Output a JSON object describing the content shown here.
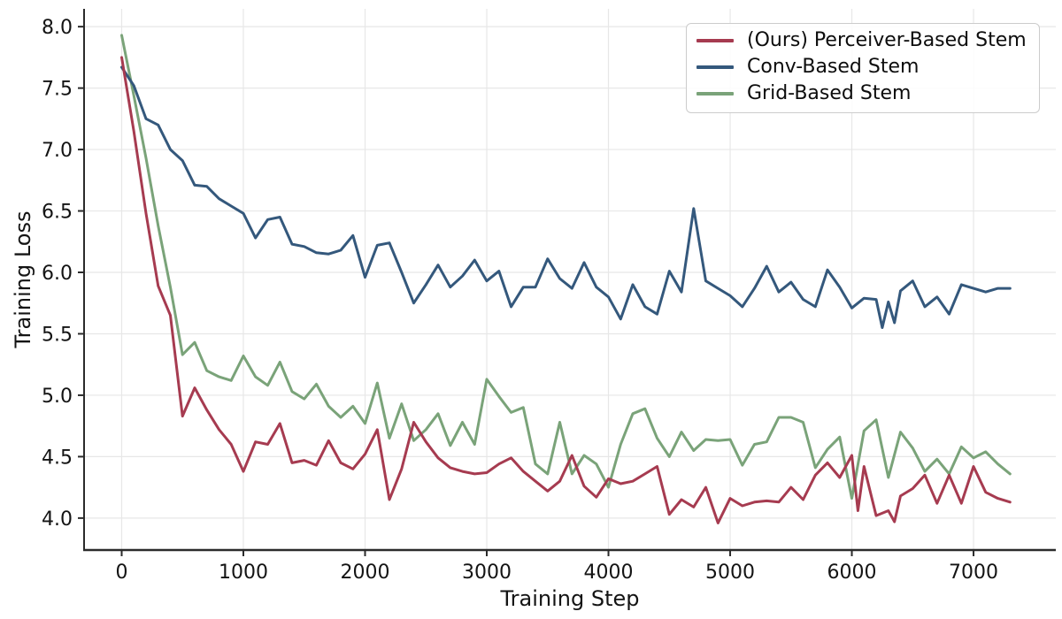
{
  "chart_data": {
    "type": "line",
    "title": "",
    "xlabel": "Training Step",
    "ylabel": "Training Loss",
    "xlim": [
      -309,
      7676
    ],
    "ylim": [
      3.74,
      8.145
    ],
    "grid": true,
    "legend_position": "upper right",
    "x_ticks": [
      {
        "value": 0,
        "label": "0"
      },
      {
        "value": 1000,
        "label": "1000"
      },
      {
        "value": 2000,
        "label": "2000"
      },
      {
        "value": 3000,
        "label": "3000"
      },
      {
        "value": 4000,
        "label": "4000"
      },
      {
        "value": 5000,
        "label": "5000"
      },
      {
        "value": 6000,
        "label": "6000"
      },
      {
        "value": 7000,
        "label": "7000"
      }
    ],
    "y_ticks": [
      {
        "value": 4.0,
        "label": "4.0"
      },
      {
        "value": 4.5,
        "label": "4.5"
      },
      {
        "value": 5.0,
        "label": "5.0"
      },
      {
        "value": 5.5,
        "label": "5.5"
      },
      {
        "value": 6.0,
        "label": "6.0"
      },
      {
        "value": 6.5,
        "label": "6.5"
      },
      {
        "value": 7.0,
        "label": "7.0"
      },
      {
        "value": 7.5,
        "label": "7.5"
      },
      {
        "value": 8.0,
        "label": "8.0"
      }
    ],
    "style": {
      "background": "#ffffff",
      "grid_color": "#e7e7e7",
      "spine_color": "#2b2b2b",
      "tick_label_color": "#141414",
      "legend_border_color": "#cccccc",
      "line_width": 3
    },
    "series": [
      {
        "name": "(Ours) Perceiver-Based Stem",
        "color": "#a63b50",
        "x": [
          0,
          100,
          200,
          300,
          400,
          500,
          600,
          700,
          800,
          900,
          1000,
          1100,
          1200,
          1300,
          1400,
          1500,
          1600,
          1700,
          1800,
          1900,
          2000,
          2100,
          2200,
          2300,
          2400,
          2500,
          2600,
          2700,
          2800,
          2900,
          3000,
          3100,
          3200,
          3300,
          3400,
          3500,
          3600,
          3700,
          3800,
          3900,
          4000,
          4100,
          4200,
          4300,
          4400,
          4500,
          4600,
          4700,
          4800,
          4900,
          5000,
          5100,
          5200,
          5300,
          5400,
          5500,
          5600,
          5700,
          5800,
          5900,
          6000,
          6050,
          6100,
          6200,
          6300,
          6350,
          6400,
          6500,
          6600,
          6700,
          6800,
          6900,
          7000,
          7100,
          7200,
          7300
        ],
        "y": [
          7.75,
          7.15,
          6.48,
          5.89,
          5.65,
          4.83,
          5.06,
          4.88,
          4.72,
          4.6,
          4.38,
          4.62,
          4.6,
          4.77,
          4.45,
          4.47,
          4.43,
          4.63,
          4.45,
          4.4,
          4.52,
          4.72,
          4.15,
          4.4,
          4.78,
          4.62,
          4.49,
          4.41,
          4.38,
          4.36,
          4.37,
          4.44,
          4.49,
          4.38,
          4.3,
          4.22,
          4.3,
          4.51,
          4.26,
          4.17,
          4.32,
          4.28,
          4.3,
          4.36,
          4.42,
          4.03,
          4.15,
          4.09,
          4.25,
          3.96,
          4.16,
          4.1,
          4.13,
          4.14,
          4.13,
          4.25,
          4.15,
          4.35,
          4.45,
          4.33,
          4.51,
          4.06,
          4.42,
          4.02,
          4.06,
          3.97,
          4.18,
          4.24,
          4.35,
          4.12,
          4.35,
          4.12,
          4.42,
          4.21,
          4.16,
          4.13
        ]
      },
      {
        "name": "Conv-Based Stem",
        "color": "#34587c",
        "x": [
          0,
          100,
          200,
          300,
          400,
          500,
          600,
          700,
          800,
          900,
          1000,
          1100,
          1200,
          1300,
          1400,
          1500,
          1600,
          1700,
          1800,
          1900,
          2000,
          2100,
          2200,
          2300,
          2400,
          2500,
          2600,
          2700,
          2800,
          2900,
          3000,
          3100,
          3200,
          3300,
          3400,
          3500,
          3600,
          3700,
          3800,
          3900,
          4000,
          4100,
          4200,
          4300,
          4400,
          4500,
          4600,
          4700,
          4800,
          4900,
          5000,
          5100,
          5200,
          5300,
          5400,
          5500,
          5600,
          5700,
          5800,
          5900,
          6000,
          6100,
          6200,
          6250,
          6300,
          6350,
          6400,
          6500,
          6600,
          6700,
          6800,
          6900,
          7000,
          7100,
          7200,
          7300
        ],
        "y": [
          7.67,
          7.52,
          7.25,
          7.2,
          7.0,
          6.91,
          6.71,
          6.7,
          6.6,
          6.54,
          6.48,
          6.28,
          6.43,
          6.45,
          6.23,
          6.21,
          6.16,
          6.15,
          6.18,
          6.3,
          5.96,
          6.22,
          6.24,
          6.0,
          5.75,
          5.9,
          6.06,
          5.88,
          5.97,
          6.1,
          5.93,
          6.01,
          5.72,
          5.88,
          5.88,
          6.11,
          5.95,
          5.87,
          6.08,
          5.88,
          5.8,
          5.62,
          5.9,
          5.72,
          5.66,
          6.01,
          5.84,
          6.52,
          5.93,
          5.87,
          5.81,
          5.72,
          5.87,
          6.05,
          5.84,
          5.92,
          5.78,
          5.72,
          6.02,
          5.88,
          5.71,
          5.79,
          5.78,
          5.55,
          5.76,
          5.59,
          5.85,
          5.93,
          5.72,
          5.8,
          5.66,
          5.9,
          5.87,
          5.84,
          5.87,
          5.87
        ]
      },
      {
        "name": "Grid-Based Stem",
        "color": "#7aa379",
        "x": [
          0,
          100,
          200,
          300,
          400,
          500,
          600,
          700,
          800,
          900,
          1000,
          1100,
          1200,
          1300,
          1400,
          1500,
          1600,
          1700,
          1800,
          1900,
          2000,
          2100,
          2200,
          2300,
          2400,
          2500,
          2600,
          2700,
          2800,
          2900,
          3000,
          3100,
          3200,
          3300,
          3400,
          3500,
          3600,
          3700,
          3800,
          3900,
          4000,
          4100,
          4200,
          4300,
          4400,
          4500,
          4600,
          4700,
          4800,
          4900,
          5000,
          5100,
          5200,
          5300,
          5400,
          5500,
          5600,
          5700,
          5800,
          5900,
          6000,
          6100,
          6200,
          6300,
          6400,
          6500,
          6600,
          6700,
          6800,
          6900,
          7000,
          7100,
          7200,
          7300
        ],
        "y": [
          7.93,
          7.44,
          6.93,
          6.38,
          5.88,
          5.33,
          5.43,
          5.2,
          5.15,
          5.12,
          5.32,
          5.15,
          5.08,
          5.27,
          5.03,
          4.97,
          5.09,
          4.91,
          4.82,
          4.91,
          4.77,
          5.1,
          4.65,
          4.93,
          4.63,
          4.72,
          4.85,
          4.59,
          4.78,
          4.6,
          5.13,
          4.99,
          4.86,
          4.9,
          4.44,
          4.36,
          4.78,
          4.36,
          4.51,
          4.44,
          4.25,
          4.6,
          4.85,
          4.89,
          4.65,
          4.5,
          4.7,
          4.55,
          4.64,
          4.63,
          4.64,
          4.43,
          4.6,
          4.62,
          4.82,
          4.82,
          4.78,
          4.41,
          4.56,
          4.66,
          4.16,
          4.71,
          4.8,
          4.33,
          4.7,
          4.57,
          4.38,
          4.48,
          4.36,
          4.58,
          4.49,
          4.54,
          4.44,
          4.36
        ]
      }
    ]
  }
}
